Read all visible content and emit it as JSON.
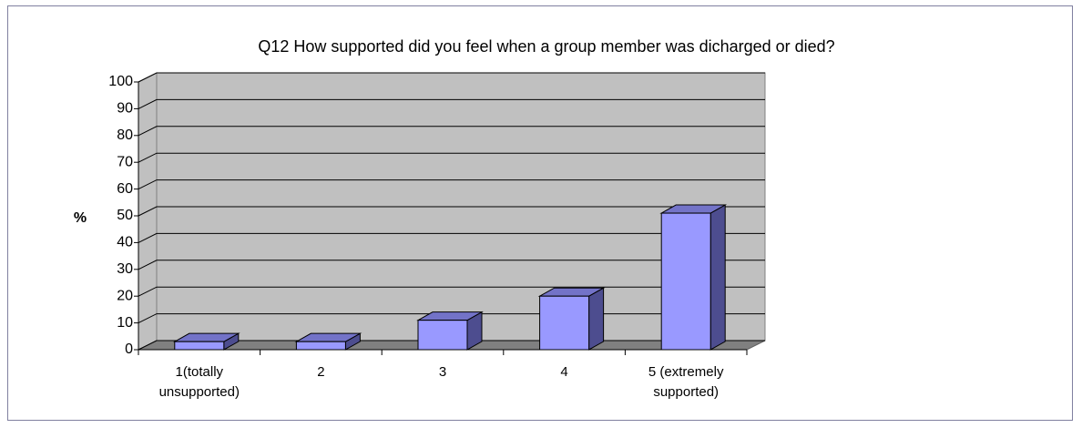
{
  "chart_data": {
    "type": "bar3d",
    "title": "Q12 How supported did you feel when a group member was dicharged or died?",
    "y_label": "%",
    "categories": [
      "1(totally unsupported)",
      "2",
      "3",
      "4",
      "5 (extremely supported)"
    ],
    "values": [
      3,
      3,
      11,
      20,
      51
    ],
    "color": "#9999ff",
    "ylim": [
      0,
      100
    ],
    "yticks": [
      0,
      10,
      20,
      30,
      40,
      50,
      60,
      70,
      80,
      90,
      100
    ],
    "grid": true
  }
}
